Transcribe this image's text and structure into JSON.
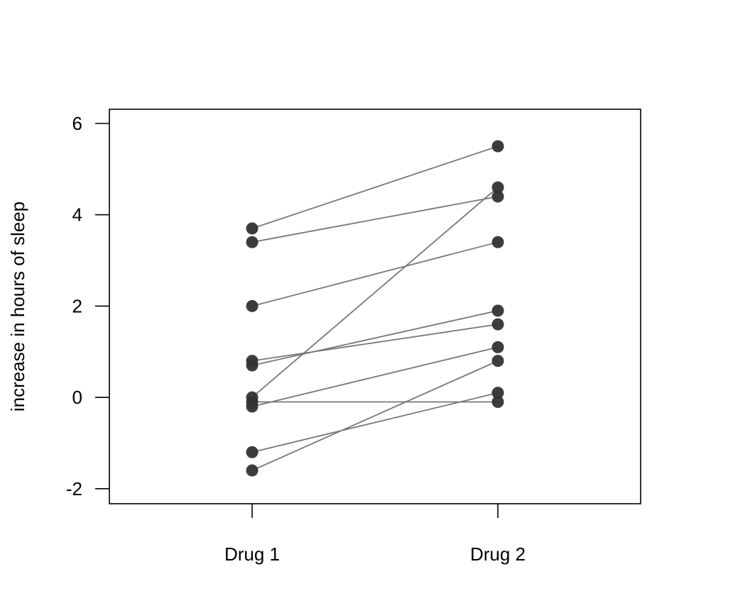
{
  "chart_data": {
    "type": "line",
    "title": "",
    "xlabel": "",
    "ylabel": "increase in hours of sleep",
    "categories": [
      "Drug 1",
      "Drug 2"
    ],
    "ylim": [
      -2.3,
      6.3
    ],
    "yticks": [
      "-2",
      "0",
      "2",
      "4",
      "6"
    ],
    "grid": false,
    "legend": "none",
    "paired_values": [
      {
        "values": [
          0.7,
          1.9
        ]
      },
      {
        "values": [
          -1.6,
          0.8
        ]
      },
      {
        "values": [
          -0.2,
          1.1
        ]
      },
      {
        "values": [
          -1.2,
          0.1
        ]
      },
      {
        "values": [
          -0.1,
          -0.1
        ]
      },
      {
        "values": [
          3.4,
          4.4
        ]
      },
      {
        "values": [
          3.7,
          5.5
        ]
      },
      {
        "values": [
          0.8,
          1.6
        ]
      },
      {
        "values": [
          0.0,
          4.6
        ]
      },
      {
        "values": [
          2.0,
          3.4
        ]
      }
    ],
    "colors": {
      "line": "#777777",
      "point": "#333333",
      "axis": "#000000"
    }
  }
}
